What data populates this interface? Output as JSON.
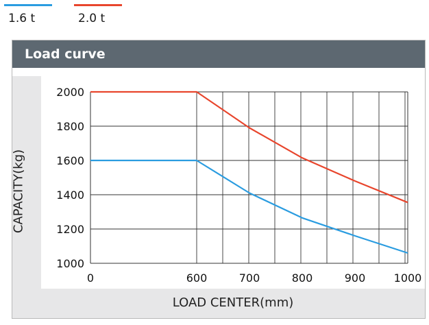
{
  "legend": [
    {
      "name": "1.6 t",
      "color": "#2a9ce0"
    },
    {
      "name": "2.0 t",
      "color": "#e8452c"
    }
  ],
  "panel": {
    "title": "Load curve"
  },
  "chart_data": {
    "type": "line",
    "title": "Load curve",
    "xlabel": "LOAD CENTER(mm)",
    "ylabel": "CAPACITY(kg)",
    "xticks": [
      0,
      600,
      700,
      800,
      900,
      1000
    ],
    "yticks": [
      1000,
      1200,
      1400,
      1600,
      1800,
      2000
    ],
    "xlim": [
      0,
      1000
    ],
    "ylim": [
      1000,
      2000
    ],
    "grid": true,
    "legend_position": "top-left",
    "series": [
      {
        "name": "1.6 t",
        "color": "#2a9ce0",
        "x": [
          0,
          600,
          700,
          800,
          900,
          1000
        ],
        "y": [
          1600,
          1600,
          1410,
          1265,
          1160,
          1060
        ]
      },
      {
        "name": "2.0 t",
        "color": "#e8452c",
        "x": [
          0,
          600,
          700,
          800,
          900,
          1000
        ],
        "y": [
          2000,
          2000,
          1790,
          1615,
          1480,
          1355
        ]
      }
    ]
  }
}
